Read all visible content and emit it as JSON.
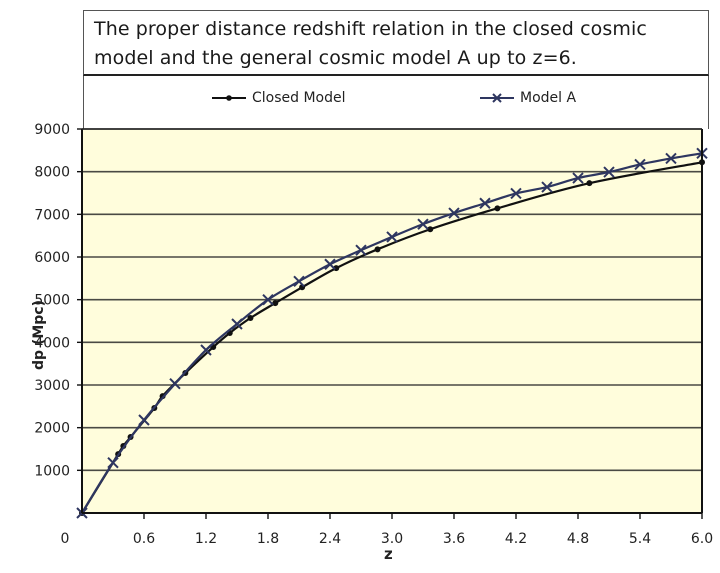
{
  "chart_data": {
    "type": "line",
    "title": "The proper distance redshift relation in the closed cosmic model and the general cosmic model A up to  z=6.",
    "title_lines": [
      "The proper distance redshift relation in the closed cosmic",
      "model and the general cosmic model A up to  z=6."
    ],
    "xlabel": "z",
    "ylabel": "dp (Mpc)",
    "xlim": [
      0,
      6.0
    ],
    "ylim": [
      0,
      9000
    ],
    "x_ticks": [
      "0",
      "0.6",
      "1.2",
      "1.8",
      "2.4",
      "3.0",
      "3.6",
      "4.2",
      "4.8",
      "5.4",
      "6.0"
    ],
    "x_tick_values": [
      0,
      0.6,
      1.2,
      1.8,
      2.4,
      3.0,
      3.6,
      4.2,
      4.8,
      5.4,
      6.0
    ],
    "y_ticks": [
      "1000",
      "2000",
      "3000",
      "4000",
      "5000",
      "6000",
      "7000",
      "8000",
      "9000"
    ],
    "y_tick_values": [
      1000,
      2000,
      3000,
      4000,
      5000,
      6000,
      7000,
      8000,
      9000
    ],
    "grid": {
      "horizontal": true,
      "vertical": false
    },
    "legend_position": "top",
    "plot_background": "#FFFDDC",
    "series": [
      {
        "name": "Closed Model",
        "color": "#111111",
        "marker": "dot",
        "x": [
          0,
          0.35,
          0.4,
          0.47,
          0.7,
          0.78,
          1.0,
          1.27,
          1.43,
          1.63,
          1.87,
          2.13,
          2.46,
          2.86,
          3.37,
          4.02,
          4.91,
          6.0
        ],
        "y": [
          0,
          1380,
          1570,
          1780,
          2460,
          2740,
          3280,
          3890,
          4220,
          4570,
          4920,
          5290,
          5740,
          6180,
          6650,
          7140,
          7730,
          8220
        ]
      },
      {
        "name": "Model A",
        "color": "#2E3660",
        "marker": "x",
        "x": [
          0,
          0.3,
          0.6,
          0.9,
          1.2,
          1.5,
          1.8,
          2.1,
          2.4,
          2.7,
          3.0,
          3.3,
          3.6,
          3.9,
          4.2,
          4.5,
          4.8,
          5.1,
          5.4,
          5.7,
          6.0
        ],
        "y": [
          0,
          1180,
          2180,
          3030,
          3820,
          4430,
          5000,
          5430,
          5830,
          6160,
          6470,
          6770,
          7030,
          7260,
          7490,
          7640,
          7850,
          7990,
          8170,
          8310,
          8430
        ]
      }
    ]
  },
  "legend": {
    "items": [
      {
        "label": "Closed Model"
      },
      {
        "label": "Model A"
      }
    ]
  }
}
